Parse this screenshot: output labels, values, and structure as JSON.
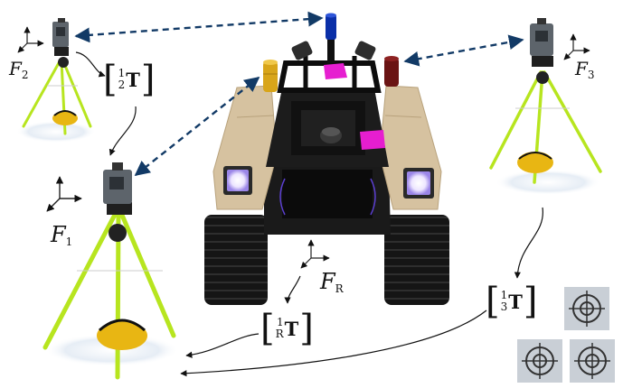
{
  "frames": {
    "f2": {
      "symbol": "F",
      "sub": "2"
    },
    "f3": {
      "symbol": "F",
      "sub": "3"
    },
    "f1": {
      "symbol": "F",
      "sub": "1"
    },
    "fr": {
      "symbol": "F",
      "sub": "R"
    }
  },
  "transforms": {
    "t21": {
      "sup": "1",
      "sub": "2",
      "symbol": "T"
    },
    "t31": {
      "sup": "1",
      "sub": "3",
      "symbol": "T"
    },
    "tr1": {
      "sup": "1",
      "sub": "R",
      "symbol": "T"
    }
  },
  "colors": {
    "tripod_leg": "#b7e51f",
    "link_arrow": "#123a66",
    "robot_body": "#d6c2a0",
    "track": "#151515",
    "prism_blue": "#0a2fa8",
    "prism_gold": "#d8a51a",
    "prism_red": "#6a1414",
    "prism_box": "#e61ed0"
  },
  "icons": [
    "total-station-icon",
    "survey-target-icon",
    "robot-icon"
  ]
}
